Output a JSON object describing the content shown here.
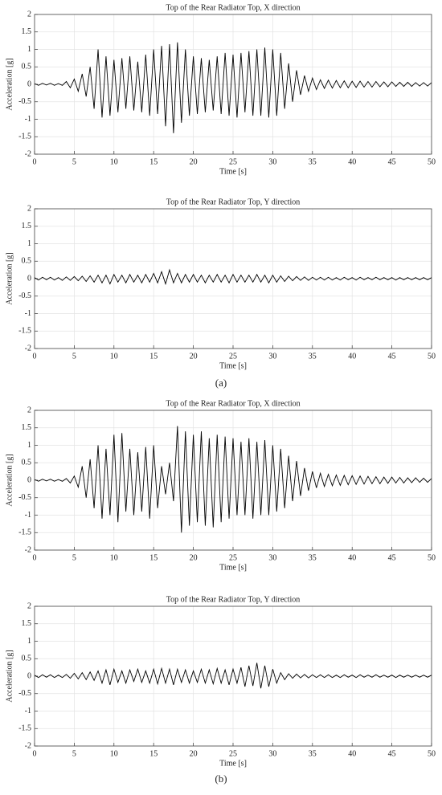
{
  "chart_data": [
    {
      "type": "line",
      "title": "Top of the Rear Radiator Top, X direction",
      "xlabel": "Time [s]",
      "ylabel": "Acceleration [g]",
      "color": "#000000",
      "grid": true,
      "xlim": [
        0,
        50
      ],
      "ylim": [
        -2,
        2
      ],
      "xticks": [
        0,
        5,
        10,
        15,
        20,
        25,
        30,
        35,
        40,
        45,
        50
      ],
      "yticks": [
        -2,
        -1.5,
        -1,
        -0.5,
        0,
        0.5,
        1,
        1.5,
        2
      ],
      "x": [
        0,
        0.5,
        1,
        1.5,
        2,
        2.5,
        3,
        3.5,
        4,
        4.5,
        5,
        5.5,
        6,
        6.5,
        7,
        7.5,
        8,
        8.5,
        9,
        9.5,
        10,
        10.5,
        11,
        11.5,
        12,
        12.5,
        13,
        13.5,
        14,
        14.5,
        15,
        15.5,
        16,
        16.5,
        17,
        17.5,
        18,
        18.5,
        19,
        19.5,
        20,
        20.5,
        21,
        21.5,
        22,
        22.5,
        23,
        23.5,
        24,
        24.5,
        25,
        25.5,
        26,
        26.5,
        27,
        27.5,
        28,
        28.5,
        29,
        29.5,
        30,
        30.5,
        31,
        31.5,
        32,
        32.5,
        33,
        33.5,
        34,
        34.5,
        35,
        35.5,
        36,
        36.5,
        37,
        37.5,
        38,
        38.5,
        39,
        39.5,
        40,
        40.5,
        41,
        41.5,
        42,
        42.5,
        43,
        43.5,
        44,
        44.5,
        45,
        45.5,
        46,
        46.5,
        47,
        47.5,
        48,
        48.5,
        49,
        49.5,
        50
      ],
      "values": [
        0.02,
        -0.03,
        0.03,
        -0.02,
        0.03,
        -0.03,
        0.02,
        -0.03,
        0.08,
        -0.1,
        0.15,
        -0.2,
        0.3,
        -0.35,
        0.5,
        -0.7,
        1.0,
        -0.95,
        0.8,
        -0.9,
        0.7,
        -0.8,
        0.75,
        -0.7,
        0.8,
        -0.75,
        0.65,
        -0.8,
        0.85,
        -0.9,
        1.0,
        -0.85,
        1.1,
        -1.2,
        1.15,
        -1.4,
        1.2,
        -1.1,
        1.0,
        -0.9,
        0.8,
        -0.85,
        0.75,
        -0.8,
        0.7,
        -0.75,
        0.8,
        -0.85,
        0.9,
        -0.9,
        0.85,
        -0.95,
        0.9,
        -0.8,
        0.95,
        -0.9,
        1.0,
        -0.9,
        1.05,
        -0.95,
        1.0,
        -0.9,
        0.9,
        -0.7,
        0.6,
        -0.5,
        0.4,
        -0.3,
        0.25,
        -0.2,
        0.18,
        -0.15,
        0.13,
        -0.12,
        0.12,
        -0.11,
        0.11,
        -0.1,
        0.1,
        -0.1,
        0.09,
        -0.09,
        0.09,
        -0.08,
        0.08,
        -0.08,
        0.08,
        -0.07,
        0.07,
        -0.07,
        0.07,
        -0.06,
        0.06,
        -0.06,
        0.06,
        -0.06,
        0.05,
        -0.05,
        0.05,
        -0.05,
        0.05
      ]
    },
    {
      "type": "line",
      "title": "Top of the Rear Radiator Top, Y direction",
      "xlabel": "Time [s]",
      "ylabel": "Acceleration [g]",
      "color": "#000000",
      "grid": true,
      "xlim": [
        0,
        50
      ],
      "ylim": [
        -2,
        2
      ],
      "xticks": [
        0,
        5,
        10,
        15,
        20,
        25,
        30,
        35,
        40,
        45,
        50
      ],
      "yticks": [
        -2,
        -1.5,
        -1,
        -0.5,
        0,
        0.5,
        1,
        1.5,
        2
      ],
      "x": [
        0,
        0.5,
        1,
        1.5,
        2,
        2.5,
        3,
        3.5,
        4,
        4.5,
        5,
        5.5,
        6,
        6.5,
        7,
        7.5,
        8,
        8.5,
        9,
        9.5,
        10,
        10.5,
        11,
        11.5,
        12,
        12.5,
        13,
        13.5,
        14,
        14.5,
        15,
        15.5,
        16,
        16.5,
        17,
        17.5,
        18,
        18.5,
        19,
        19.5,
        20,
        20.5,
        21,
        21.5,
        22,
        22.5,
        23,
        23.5,
        24,
        24.5,
        25,
        25.5,
        26,
        26.5,
        27,
        27.5,
        28,
        28.5,
        29,
        29.5,
        30,
        30.5,
        31,
        31.5,
        32,
        32.5,
        33,
        33.5,
        34,
        34.5,
        35,
        35.5,
        36,
        36.5,
        37,
        37.5,
        38,
        38.5,
        39,
        39.5,
        40,
        40.5,
        41,
        41.5,
        42,
        42.5,
        43,
        43.5,
        44,
        44.5,
        45,
        45.5,
        46,
        46.5,
        47,
        47.5,
        48,
        48.5,
        49,
        49.5,
        50
      ],
      "values": [
        0.03,
        -0.04,
        0.04,
        -0.03,
        0.04,
        -0.04,
        0.03,
        -0.05,
        0.05,
        -0.05,
        0.06,
        -0.06,
        0.07,
        -0.08,
        0.08,
        -0.1,
        0.1,
        -0.12,
        0.1,
        -0.15,
        0.12,
        -0.1,
        0.1,
        -0.12,
        0.12,
        -0.1,
        0.1,
        -0.12,
        0.12,
        -0.1,
        0.15,
        -0.12,
        0.2,
        -0.15,
        0.25,
        -0.12,
        0.15,
        -0.12,
        0.12,
        -0.1,
        0.12,
        -0.1,
        0.1,
        -0.12,
        0.1,
        -0.1,
        0.12,
        -0.1,
        0.1,
        -0.12,
        0.12,
        -0.1,
        0.1,
        -0.1,
        0.1,
        -0.1,
        0.12,
        -0.1,
        0.1,
        -0.12,
        0.1,
        -0.1,
        0.08,
        -0.08,
        0.07,
        -0.06,
        0.06,
        -0.05,
        0.05,
        -0.05,
        0.04,
        -0.04,
        0.04,
        -0.04,
        0.04,
        -0.04,
        0.03,
        -0.04,
        0.04,
        -0.03,
        0.03,
        -0.04,
        0.04,
        -0.03,
        0.03,
        -0.03,
        0.04,
        -0.03,
        0.03,
        -0.03,
        0.03,
        -0.04,
        0.03,
        -0.03,
        0.03,
        -0.03,
        0.03,
        -0.03,
        0.03,
        -0.03,
        0.03
      ]
    },
    {
      "type": "line",
      "title": "Top of the Rear Radiator Top, X direction",
      "xlabel": "Time [s]",
      "ylabel": "Acceleration [g]",
      "color": "#000000",
      "grid": true,
      "xlim": [
        0,
        50
      ],
      "ylim": [
        -2,
        2
      ],
      "xticks": [
        0,
        5,
        10,
        15,
        20,
        25,
        30,
        35,
        40,
        45,
        50
      ],
      "yticks": [
        -2,
        -1.5,
        -1,
        -0.5,
        0,
        0.5,
        1,
        1.5,
        2
      ],
      "x": [
        0,
        0.5,
        1,
        1.5,
        2,
        2.5,
        3,
        3.5,
        4,
        4.5,
        5,
        5.5,
        6,
        6.5,
        7,
        7.5,
        8,
        8.5,
        9,
        9.5,
        10,
        10.5,
        11,
        11.5,
        12,
        12.5,
        13,
        13.5,
        14,
        14.5,
        15,
        15.5,
        16,
        16.5,
        17,
        17.5,
        18,
        18.5,
        19,
        19.5,
        20,
        20.5,
        21,
        21.5,
        22,
        22.5,
        23,
        23.5,
        24,
        24.5,
        25,
        25.5,
        26,
        26.5,
        27,
        27.5,
        28,
        28.5,
        29,
        29.5,
        30,
        30.5,
        31,
        31.5,
        32,
        32.5,
        33,
        33.5,
        34,
        34.5,
        35,
        35.5,
        36,
        36.5,
        37,
        37.5,
        38,
        38.5,
        39,
        39.5,
        40,
        40.5,
        41,
        41.5,
        42,
        42.5,
        43,
        43.5,
        44,
        44.5,
        45,
        45.5,
        46,
        46.5,
        47,
        47.5,
        48,
        48.5,
        49,
        49.5,
        50
      ],
      "values": [
        0.02,
        -0.03,
        0.03,
        -0.02,
        0.03,
        -0.03,
        0.02,
        -0.03,
        0.05,
        -0.08,
        0.12,
        -0.2,
        0.4,
        -0.5,
        0.6,
        -0.8,
        1.0,
        -1.1,
        0.9,
        -1.0,
        1.3,
        -1.2,
        1.35,
        -0.9,
        0.9,
        -1.0,
        0.8,
        -0.9,
        0.95,
        -1.1,
        1.0,
        -0.8,
        0.4,
        -0.4,
        0.5,
        -0.6,
        1.55,
        -1.5,
        1.4,
        -1.3,
        1.3,
        -1.2,
        1.4,
        -1.3,
        1.2,
        -1.35,
        1.3,
        -1.2,
        1.25,
        -1.1,
        1.2,
        -1.0,
        1.1,
        -1.0,
        1.2,
        -1.1,
        1.1,
        -1.0,
        1.15,
        -1.0,
        1.0,
        -0.9,
        0.9,
        -0.8,
        0.7,
        -0.6,
        0.55,
        -0.45,
        0.35,
        -0.3,
        0.25,
        -0.22,
        0.2,
        -0.18,
        0.17,
        -0.16,
        0.15,
        -0.15,
        0.14,
        -0.13,
        0.13,
        -0.12,
        0.12,
        -0.11,
        0.11,
        -0.1,
        0.1,
        -0.1,
        0.09,
        -0.09,
        0.09,
        -0.08,
        0.08,
        -0.08,
        0.07,
        -0.07,
        0.07,
        -0.06,
        0.06,
        -0.06,
        0.05
      ]
    },
    {
      "type": "line",
      "title": "Top of the Rear Radiator Top, Y direction",
      "xlabel": "Time [s]",
      "ylabel": "Acceleration [g]",
      "color": "#000000",
      "grid": true,
      "xlim": [
        0,
        50
      ],
      "ylim": [
        -2,
        2
      ],
      "xticks": [
        0,
        5,
        10,
        15,
        20,
        25,
        30,
        35,
        40,
        45,
        50
      ],
      "yticks": [
        -2,
        -1.5,
        -1,
        -0.5,
        0,
        0.5,
        1,
        1.5,
        2
      ],
      "x": [
        0,
        0.5,
        1,
        1.5,
        2,
        2.5,
        3,
        3.5,
        4,
        4.5,
        5,
        5.5,
        6,
        6.5,
        7,
        7.5,
        8,
        8.5,
        9,
        9.5,
        10,
        10.5,
        11,
        11.5,
        12,
        12.5,
        13,
        13.5,
        14,
        14.5,
        15,
        15.5,
        16,
        16.5,
        17,
        17.5,
        18,
        18.5,
        19,
        19.5,
        20,
        20.5,
        21,
        21.5,
        22,
        22.5,
        23,
        23.5,
        24,
        24.5,
        25,
        25.5,
        26,
        26.5,
        27,
        27.5,
        28,
        28.5,
        29,
        29.5,
        30,
        30.5,
        31,
        31.5,
        32,
        32.5,
        33,
        33.5,
        34,
        34.5,
        35,
        35.5,
        36,
        36.5,
        37,
        37.5,
        38,
        38.5,
        39,
        39.5,
        40,
        40.5,
        41,
        41.5,
        42,
        42.5,
        43,
        43.5,
        44,
        44.5,
        45,
        45.5,
        46,
        46.5,
        47,
        47.5,
        48,
        48.5,
        49,
        49.5,
        50
      ],
      "values": [
        0.03,
        -0.04,
        0.04,
        -0.03,
        0.04,
        -0.04,
        0.03,
        -0.04,
        0.05,
        -0.06,
        0.08,
        -0.08,
        0.1,
        -0.1,
        0.12,
        -0.12,
        0.15,
        -0.2,
        0.18,
        -0.25,
        0.2,
        -0.18,
        0.15,
        -0.2,
        0.18,
        -0.15,
        0.2,
        -0.18,
        0.15,
        -0.2,
        0.2,
        -0.22,
        0.22,
        -0.2,
        0.2,
        -0.25,
        0.2,
        -0.18,
        0.18,
        -0.2,
        0.15,
        -0.18,
        0.2,
        -0.2,
        0.18,
        -0.22,
        0.22,
        -0.2,
        0.18,
        -0.25,
        0.2,
        -0.2,
        0.25,
        -0.3,
        0.3,
        -0.28,
        0.38,
        -0.35,
        0.3,
        -0.3,
        0.2,
        -0.2,
        0.1,
        -0.1,
        0.07,
        -0.06,
        0.06,
        -0.05,
        0.05,
        -0.05,
        0.04,
        -0.04,
        0.04,
        -0.04,
        0.04,
        -0.04,
        0.03,
        -0.04,
        0.04,
        -0.03,
        0.03,
        -0.04,
        0.04,
        -0.03,
        0.03,
        -0.03,
        0.04,
        -0.03,
        0.03,
        -0.03,
        0.03,
        -0.04,
        0.03,
        -0.03,
        0.03,
        -0.03,
        0.03,
        -0.03,
        0.03,
        -0.03,
        0.03
      ]
    }
  ],
  "panel_labels": [
    "(a)",
    "(b)"
  ]
}
